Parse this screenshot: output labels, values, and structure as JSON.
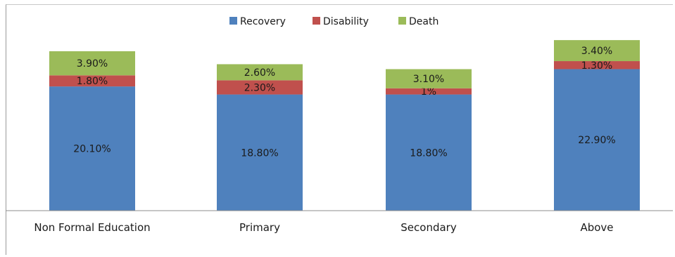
{
  "chart_data": {
    "type": "bar",
    "stacked": true,
    "categories": [
      "Non Formal Education",
      "Primary",
      "Secondary",
      "Above"
    ],
    "series": [
      {
        "name": "Recovery",
        "color": "#4f81bd",
        "values": [
          20.1,
          18.8,
          18.8,
          22.9
        ],
        "labels": [
          "20.10%",
          "18.80%",
          "18.80%",
          "22.90%"
        ]
      },
      {
        "name": "Disability",
        "color": "#c0504d",
        "values": [
          1.8,
          2.3,
          1.0,
          1.3
        ],
        "labels": [
          "1.80%",
          "2.30%",
          "1%",
          "1.30%"
        ]
      },
      {
        "name": "Death",
        "color": "#9bbb59",
        "values": [
          3.9,
          2.6,
          3.1,
          3.4
        ],
        "labels": [
          "3.90%",
          "2.60%",
          "3.10%",
          "3.40%"
        ]
      }
    ],
    "legend_position": "top",
    "grid": false,
    "ylim": [
      0,
      28
    ]
  }
}
